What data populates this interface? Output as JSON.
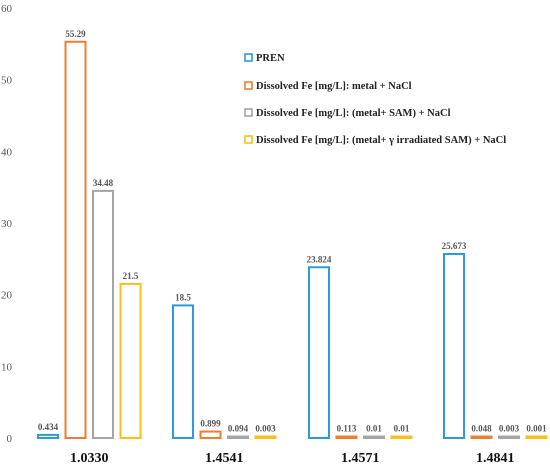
{
  "chart_data": {
    "type": "bar",
    "categories": [
      "1.0330",
      "1.4541",
      "1.4571",
      "1.4841"
    ],
    "series": [
      {
        "name": "PREN",
        "color": "#2e9bd6",
        "values": [
          0.434,
          18.5,
          23.824,
          25.673
        ],
        "labels": [
          "0.434",
          "18.5",
          "23.824",
          "25.673"
        ]
      },
      {
        "name": "Dissolved Fe [mg/L]: metal + NaCl",
        "color": "#ef7d31",
        "values": [
          55.29,
          0.899,
          0.113,
          0.048
        ],
        "labels": [
          "55.29",
          "0.899",
          "0.113",
          "0.048"
        ]
      },
      {
        "name": "Dissolved Fe [mg/L]: (metal+ SAM) + NaCl",
        "color": "#a5a5a5",
        "values": [
          34.48,
          0.094,
          0.01,
          0.003
        ],
        "labels": [
          "34.48",
          "0.094",
          "0.01",
          "0.003"
        ]
      },
      {
        "name": "Dissolved Fe [mg/L]: (metal+ γ irradiated SAM) + NaCl",
        "color": "#fbbf1c",
        "values": [
          21.5,
          0.003,
          0.01,
          0.001
        ],
        "labels": [
          "21.5",
          "0.003",
          "0.01",
          "0.001"
        ]
      }
    ],
    "title": "",
    "xlabel": "",
    "ylabel": "",
    "ylim": [
      0,
      60
    ],
    "yticks": [
      0,
      10,
      20,
      30,
      40,
      50,
      60
    ],
    "grid": false,
    "legend": "top-center"
  }
}
